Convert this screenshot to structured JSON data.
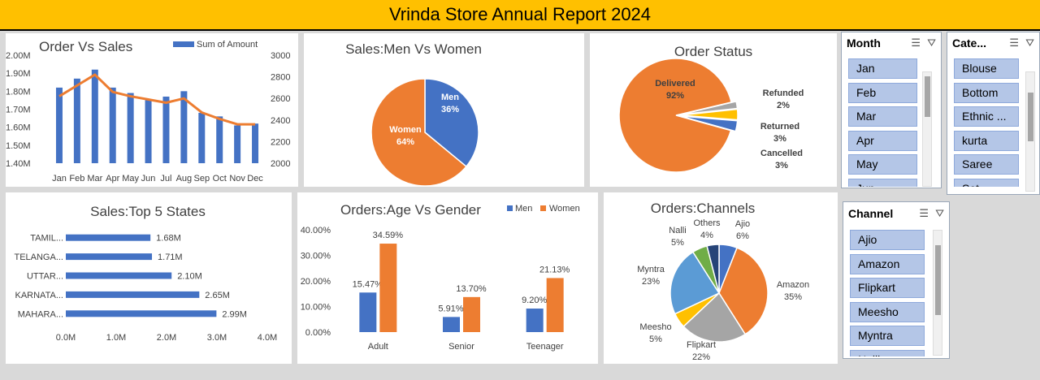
{
  "header": {
    "title": "Vrinda Store Annual Report 2024"
  },
  "colors": {
    "blue": "#4472c4",
    "orange": "#ed7d31",
    "gray": "#a5a5a5",
    "yellow": "#ffc000",
    "lightblue": "#5b9bd5",
    "green": "#70ad47",
    "navy": "#264478"
  },
  "chart_data": [
    {
      "id": "order-vs-sales",
      "type": "bar",
      "title": "Order Vs Sales",
      "legend": [
        "Sum of Amount"
      ],
      "legend_position": "top",
      "categories": [
        "Jan",
        "Feb",
        "Mar",
        "Apr",
        "May",
        "Jun",
        "Jul",
        "Aug",
        "Sep",
        "Oct",
        "Nov",
        "Dec"
      ],
      "series": [
        {
          "name": "Sum of Amount",
          "type": "bar",
          "axis": "left",
          "values": [
            1.82,
            1.87,
            1.92,
            1.82,
            1.79,
            1.75,
            1.77,
            1.8,
            1.68,
            1.66,
            1.61,
            1.62
          ]
        },
        {
          "type": "line",
          "axis": "right",
          "values": [
            2620,
            2720,
            2820,
            2660,
            2620,
            2590,
            2560,
            2600,
            2470,
            2410,
            2360,
            2360
          ]
        }
      ],
      "y_left_ticks": [
        "2.00M",
        "1.90M",
        "1.80M",
        "1.70M",
        "1.60M",
        "1.50M",
        "1.40M"
      ],
      "y_left_range": [
        1.4,
        2.0
      ],
      "y_right_ticks": [
        "3000",
        "2800",
        "2600",
        "2400",
        "2200",
        "2000"
      ],
      "y_right_range": [
        2000,
        3000
      ]
    },
    {
      "id": "sales-men-women",
      "type": "pie",
      "title": "Sales:Men Vs Women",
      "slices": [
        {
          "label": "Men",
          "pct": "36%",
          "value": 36
        },
        {
          "label": "Women",
          "pct": "64%",
          "value": 64
        }
      ]
    },
    {
      "id": "order-status",
      "type": "pie",
      "title": "Order Status",
      "slices": [
        {
          "label": "Delivered",
          "pct": "92%",
          "value": 92
        },
        {
          "label": "Refunded",
          "pct": "2%",
          "value": 2
        },
        {
          "label": "Returned",
          "pct": "3%",
          "value": 3
        },
        {
          "label": "Cancelled",
          "pct": "3%",
          "value": 3
        }
      ]
    },
    {
      "id": "top-states",
      "type": "bar",
      "orientation": "horizontal",
      "title": "Sales:Top 5 States",
      "categories": [
        "TAMIL...",
        "TELANGA...",
        "UTTAR...",
        "KARNATA...",
        "MAHARA..."
      ],
      "values": [
        1.68,
        1.71,
        2.1,
        2.65,
        2.99
      ],
      "value_labels": [
        "1.68M",
        "1.71M",
        "2.10M",
        "2.65M",
        "2.99M"
      ],
      "x_ticks": [
        "0.0M",
        "1.0M",
        "2.0M",
        "3.0M",
        "4.0M"
      ],
      "x_range": [
        0,
        4
      ]
    },
    {
      "id": "age-gender",
      "type": "bar",
      "title": "Orders:Age Vs Gender",
      "legend_position": "top-right",
      "categories": [
        "Adult",
        "Senior",
        "Teenager"
      ],
      "series": [
        {
          "name": "Men",
          "values": [
            15.47,
            5.91,
            9.2
          ],
          "labels": [
            "15.47%",
            "5.91%",
            "9.20%"
          ]
        },
        {
          "name": "Women",
          "values": [
            34.59,
            13.7,
            21.13
          ],
          "labels": [
            "34.59%",
            "13.70%",
            "21.13%"
          ]
        }
      ],
      "y_ticks": [
        "40.00%",
        "30.00%",
        "20.00%",
        "10.00%",
        "0.00%"
      ],
      "y_range": [
        0,
        40
      ]
    },
    {
      "id": "channels",
      "type": "pie",
      "title": "Orders:Channels",
      "slices": [
        {
          "label": "Ajio",
          "pct": "6%",
          "value": 6
        },
        {
          "label": "Amazon",
          "pct": "35%",
          "value": 35
        },
        {
          "label": "Flipkart",
          "pct": "22%",
          "value": 22
        },
        {
          "label": "Meesho",
          "pct": "5%",
          "value": 5
        },
        {
          "label": "Myntra",
          "pct": "23%",
          "value": 23
        },
        {
          "label": "Nalli",
          "pct": "5%",
          "value": 5
        },
        {
          "label": "Others",
          "pct": "4%",
          "value": 4
        }
      ]
    }
  ],
  "slicers": {
    "month": {
      "title": "Month",
      "items": [
        "Jan",
        "Feb",
        "Mar",
        "Apr",
        "May",
        "Jun"
      ]
    },
    "category": {
      "title": "Cate...",
      "items": [
        "Blouse",
        "Bottom",
        "Ethnic ...",
        "kurta",
        "Saree",
        "Set"
      ]
    },
    "channel": {
      "title": "Channel",
      "items": [
        "Ajio",
        "Amazon",
        "Flipkart",
        "Meesho",
        "Myntra",
        "Nalli"
      ]
    }
  }
}
